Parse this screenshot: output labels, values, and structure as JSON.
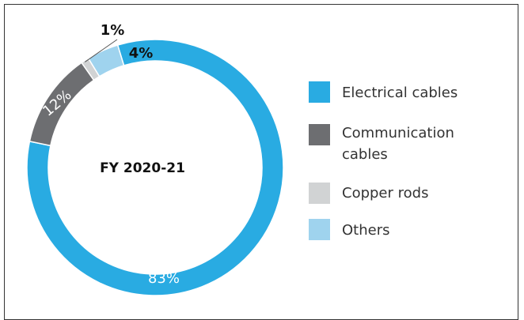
{
  "chart_data": {
    "type": "pie",
    "variant": "donut",
    "center_label": "FY 2020-21",
    "slices": [
      {
        "label": "Electrical cables",
        "value": 83,
        "value_label": "83%",
        "color": "#29ABE2"
      },
      {
        "label": "Communication cables",
        "value": 12,
        "value_label": "12%",
        "color": "#6D6E71"
      },
      {
        "label": "Copper rods",
        "value": 1,
        "value_label": "1%",
        "color": "#D1D3D4"
      },
      {
        "label": "Others",
        "value": 4,
        "value_label": "4%",
        "color": "#9FD3EE"
      }
    ],
    "legend_position": "right"
  }
}
